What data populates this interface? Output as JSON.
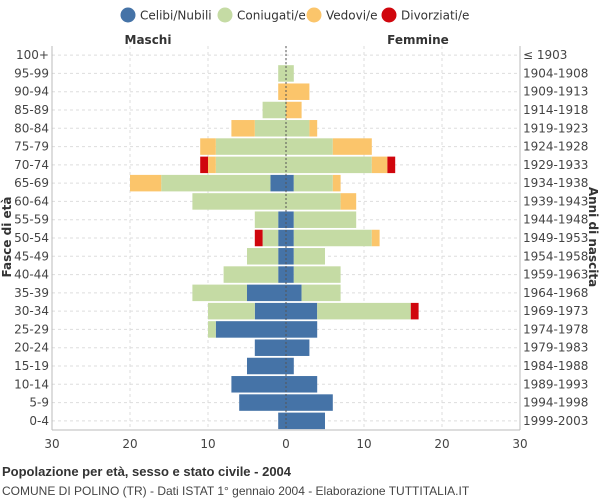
{
  "chart_data": {
    "type": "bar",
    "orientation": "horizontal",
    "title": "Popolazione per età, sesso e stato civile - 2004",
    "subtitle": "COMUNE DI POLINO (TR) - Dati ISTAT 1° gennaio 2004 - Elaborazione TUTTITALIA.IT",
    "left_header": "Maschi",
    "right_header": "Femmine",
    "ylabel_left": "Fasce di età",
    "ylabel_right": "Anni di nascita",
    "xlim": [
      -30,
      30
    ],
    "x_ticks": [
      -30,
      -20,
      -10,
      0,
      10,
      20,
      30
    ],
    "x_tick_labels": [
      "30",
      "20",
      "10",
      "0",
      "10",
      "20",
      "30"
    ],
    "legend_position": "top",
    "series": [
      {
        "key": "celibi",
        "name": "Celibi/Nubili",
        "color": "#4573a7"
      },
      {
        "key": "coniugati",
        "name": "Coniugati/e",
        "color": "#c5dba4"
      },
      {
        "key": "vedovi",
        "name": "Vedovi/e",
        "color": "#fbc56b"
      },
      {
        "key": "divorziati",
        "name": "Divorziati/e",
        "color": "#d0060d"
      }
    ],
    "age_groups": [
      "100+",
      "95-99",
      "90-94",
      "85-89",
      "80-84",
      "75-79",
      "70-74",
      "65-69",
      "60-64",
      "55-59",
      "50-54",
      "45-49",
      "40-44",
      "35-39",
      "30-34",
      "25-29",
      "20-24",
      "15-19",
      "10-14",
      "5-9",
      "0-4"
    ],
    "birth_years": [
      "≤ 1903",
      "1904-1908",
      "1909-1913",
      "1914-1918",
      "1919-1923",
      "1924-1928",
      "1929-1933",
      "1934-1938",
      "1939-1943",
      "1944-1948",
      "1949-1953",
      "1954-1958",
      "1959-1963",
      "1964-1968",
      "1969-1973",
      "1974-1978",
      "1979-1983",
      "1984-1988",
      "1989-1993",
      "1994-1998",
      "1999-2003"
    ],
    "males": {
      "celibi": [
        0,
        0,
        0,
        0,
        0,
        0,
        0,
        2,
        0,
        1,
        1,
        1,
        1,
        5,
        4,
        9,
        4,
        5,
        7,
        6,
        1
      ],
      "coniugati": [
        0,
        1,
        0,
        3,
        4,
        9,
        9,
        14,
        12,
        3,
        2,
        4,
        7,
        7,
        6,
        1,
        0,
        0,
        0,
        0,
        0
      ],
      "vedovi": [
        0,
        0,
        1,
        0,
        3,
        2,
        1,
        4,
        0,
        0,
        0,
        0,
        0,
        0,
        0,
        0,
        0,
        0,
        0,
        0,
        0
      ],
      "divorziati": [
        0,
        0,
        0,
        0,
        0,
        0,
        1,
        0,
        0,
        0,
        1,
        0,
        0,
        0,
        0,
        0,
        0,
        0,
        0,
        0,
        0
      ]
    },
    "females": {
      "celibi": [
        0,
        0,
        0,
        0,
        0,
        0,
        0,
        1,
        0,
        1,
        1,
        1,
        1,
        2,
        4,
        4,
        3,
        1,
        4,
        6,
        5
      ],
      "coniugati": [
        0,
        1,
        0,
        0,
        3,
        6,
        11,
        5,
        7,
        8,
        10,
        4,
        6,
        5,
        12,
        0,
        0,
        0,
        0,
        0,
        0
      ],
      "vedovi": [
        0,
        0,
        3,
        2,
        1,
        5,
        2,
        1,
        2,
        0,
        1,
        0,
        0,
        0,
        0,
        0,
        0,
        0,
        0,
        0,
        0
      ],
      "divorziati": [
        0,
        0,
        0,
        0,
        0,
        0,
        1,
        0,
        0,
        0,
        0,
        0,
        0,
        0,
        1,
        0,
        0,
        0,
        0,
        0,
        0
      ]
    }
  }
}
